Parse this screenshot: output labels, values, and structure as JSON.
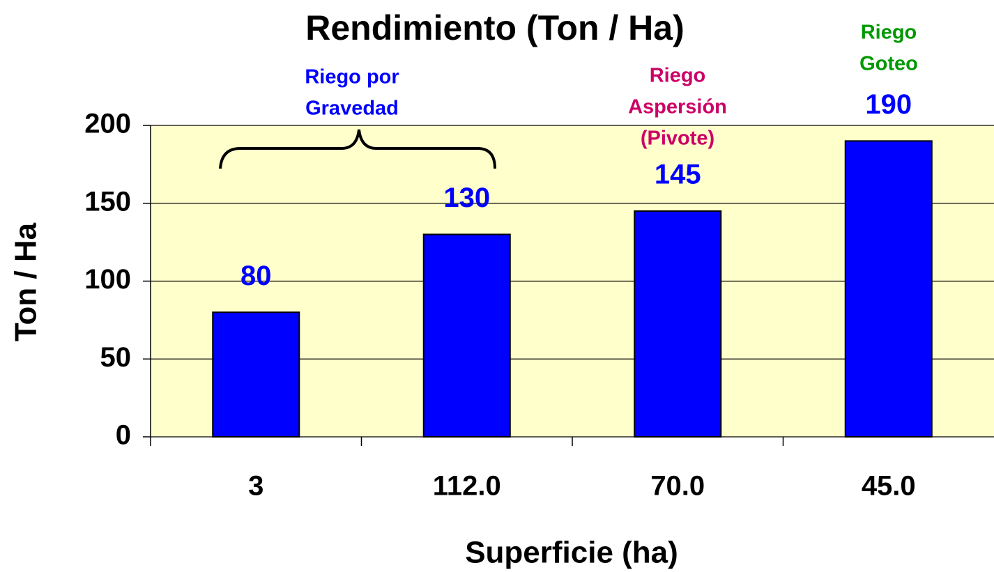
{
  "chart_data": {
    "type": "bar",
    "title": "Rendimiento (Ton / Ha)",
    "x_label": "Superficie  (ha)",
    "y_label": "Ton / Ha",
    "categories": [
      "3",
      "112.0",
      "70.0",
      "45.0"
    ],
    "values": [
      80,
      130,
      145,
      190
    ],
    "color": "#0000ff",
    "value_label_color": "#0000ff",
    "background": "#ffffcc",
    "ylim": [
      0,
      200
    ],
    "yticks": [
      0,
      50,
      100,
      150,
      200
    ],
    "grid": true,
    "annotations": [
      {
        "lines": [
          "Riego por",
          "Gravedad"
        ],
        "color": "#0000ff"
      },
      {
        "lines": [
          "Riego",
          "Aspersión",
          "(Pivote)"
        ],
        "color": "#cc0066"
      },
      {
        "lines": [
          "Riego",
          "Goteo"
        ],
        "color": "#009900"
      }
    ]
  }
}
